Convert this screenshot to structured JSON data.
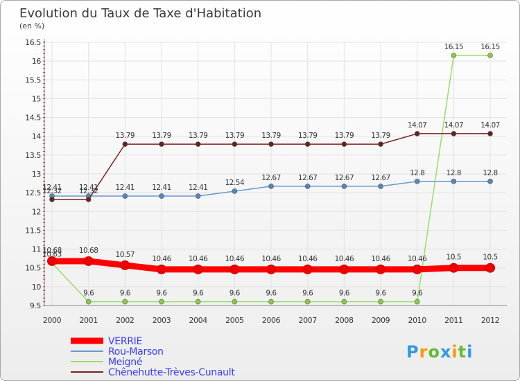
{
  "chart_data": {
    "type": "line",
    "title": "Evolution du Taux de Taxe d'Habitation",
    "subtitle": "(en %)",
    "categories": [
      "2000",
      "2001",
      "2002",
      "2003",
      "2004",
      "2005",
      "2006",
      "2007",
      "2008",
      "2009",
      "2010",
      "2011",
      "2012"
    ],
    "ylim": [
      9.5,
      16.5
    ],
    "yticks": [
      9.5,
      10,
      10.5,
      11,
      11.5,
      12,
      12.5,
      13,
      13.5,
      14,
      14.5,
      15,
      15.5,
      16,
      16.5
    ],
    "grid": true,
    "legend_position": "bottom-left",
    "series": [
      {
        "name": "Meigné",
        "color": "#99dd66",
        "marker": "#88cc44",
        "values": [
          10.63,
          9.6,
          9.6,
          9.6,
          9.6,
          9.6,
          9.6,
          9.6,
          9.6,
          9.6,
          9.6,
          16.15,
          16.15
        ],
        "labels": [
          "10.63",
          "9.6",
          "9.6",
          "9.6",
          "9.6",
          "9.6",
          "9.6",
          "9.6",
          "9.6",
          "9.6",
          "9.6",
          "16.15",
          "16.15"
        ]
      },
      {
        "name": "Rou-Marson",
        "color": "#6699cc",
        "marker": "#5588bb",
        "values": [
          12.41,
          12.41,
          12.41,
          12.41,
          12.41,
          12.54,
          12.67,
          12.67,
          12.67,
          12.67,
          12.8,
          12.8,
          12.8
        ],
        "labels": [
          "12.41",
          "12.41",
          "12.41",
          "12.41",
          "12.41",
          "12.54",
          "12.67",
          "12.67",
          "12.67",
          "12.67",
          "12.8",
          "12.8",
          "12.8"
        ]
      },
      {
        "name": "Chênehutte-Trèves-Cunault",
        "color": "#772222",
        "marker": "#662222",
        "values": [
          12.32,
          12.32,
          13.79,
          13.79,
          13.79,
          13.79,
          13.79,
          13.79,
          13.79,
          13.79,
          14.07,
          14.07,
          14.07
        ],
        "labels": [
          "12.32",
          "12.32",
          "13.79",
          "13.79",
          "13.79",
          "13.79",
          "13.79",
          "13.79",
          "13.79",
          "13.79",
          "14.07",
          "14.07",
          "14.07"
        ]
      },
      {
        "name": "VERRIE",
        "color": "#ff0000",
        "marker": "#ee0000",
        "values": [
          10.68,
          10.68,
          10.57,
          10.46,
          10.46,
          10.46,
          10.46,
          10.46,
          10.46,
          10.46,
          10.46,
          10.5,
          10.5
        ],
        "labels": [
          "10.68",
          "10.68",
          "10.57",
          "10.46",
          "10.46",
          "10.46",
          "10.46",
          "10.46",
          "10.46",
          "10.46",
          "10.46",
          "10.5",
          "10.5"
        ]
      }
    ],
    "legend": [
      "VERRIE",
      "Rou-Marson",
      "Meigné",
      "Chênehutte-Trèves-Cunault"
    ]
  },
  "logo": {
    "letters": [
      "P",
      "r",
      "o",
      "x",
      "i",
      "t",
      "i"
    ],
    "colors": [
      "#3399dd",
      "#ff9900",
      "#66bb33",
      "#3399dd",
      "#ff9900",
      "#66bb33",
      "#3399dd"
    ]
  }
}
